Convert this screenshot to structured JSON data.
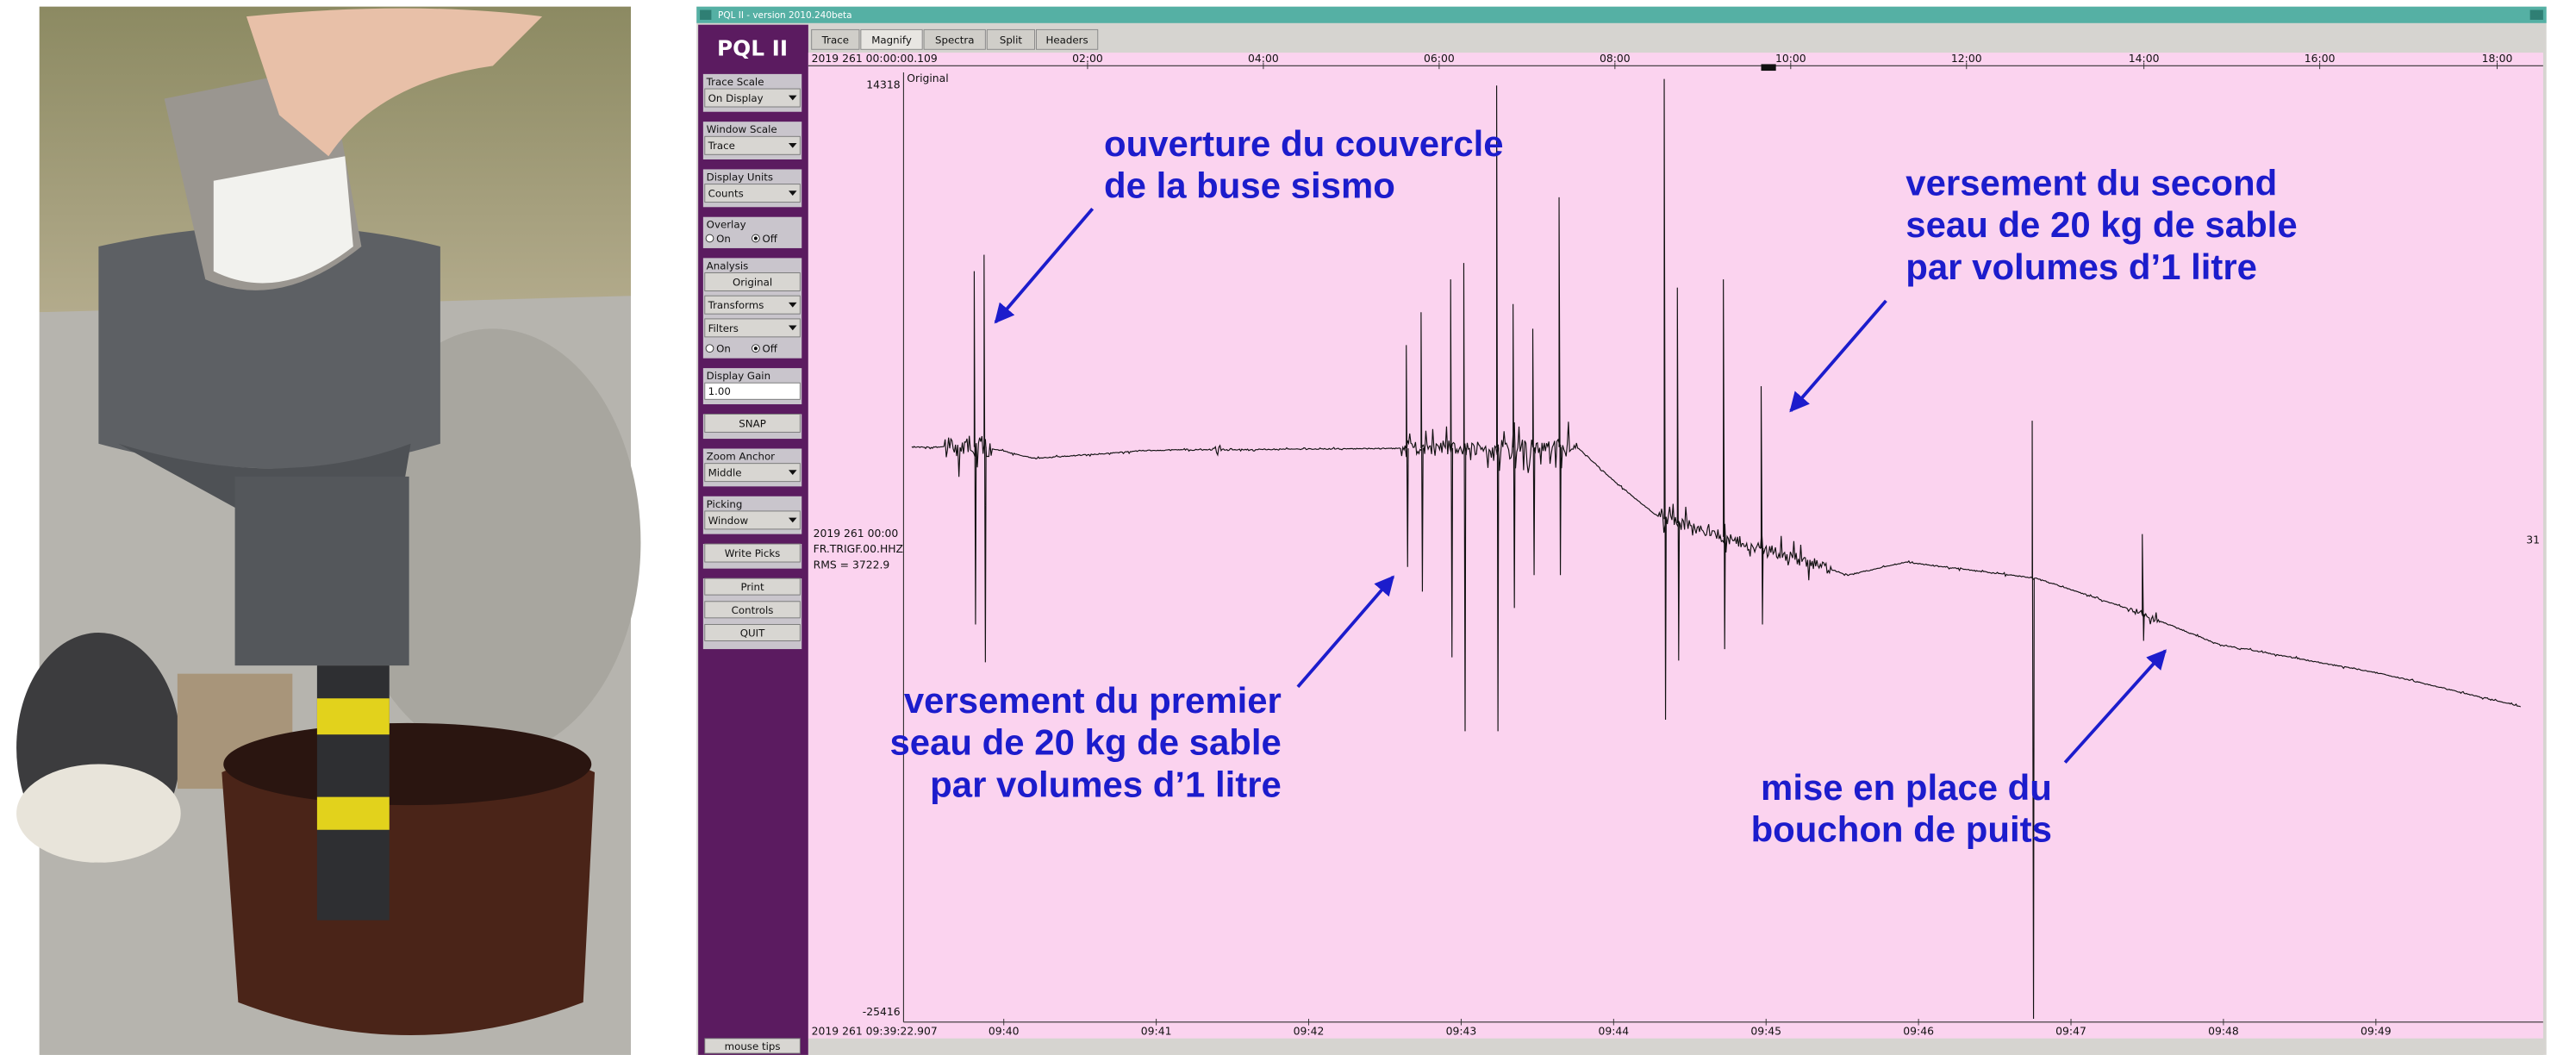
{
  "window": {
    "title": "PQL II - version 2010.240beta"
  },
  "tabs": [
    "Trace",
    "Magnify",
    "Spectra",
    "Split",
    "Headers"
  ],
  "sidebar": {
    "logo": "PQL II",
    "controls": [
      {
        "label": "Trace Scale",
        "dropdown": "On Display"
      },
      {
        "label": "Window Scale",
        "dropdown": "Trace"
      },
      {
        "label": "Display Units",
        "dropdown": "Counts"
      },
      {
        "label": "Overlay",
        "radio": [
          "On",
          "Off"
        ]
      },
      {
        "label": "Analysis",
        "button": "Original",
        "dropdowns": [
          "Transforms",
          "Filters"
        ],
        "radio": [
          "On",
          "Off"
        ]
      },
      {
        "label": "Display Gain",
        "input": "1.00"
      },
      {
        "button": "SNAP"
      },
      {
        "label": "Zoom Anchor",
        "dropdown": "Middle"
      },
      {
        "label": "Picking",
        "dropdown": "Window"
      },
      {
        "button": "Write Picks"
      },
      {
        "buttons": [
          "Print",
          "Controls",
          "QUIT"
        ]
      }
    ],
    "footer": "mouse tips"
  },
  "overview_axis": {
    "start": "2019 261 00:00:00.109",
    "ticks": [
      "02:00",
      "04:00",
      "06:00",
      "08:00",
      "10:00",
      "12:00",
      "14:00",
      "16:00",
      "18:00"
    ]
  },
  "trace": {
    "name": "Original",
    "max": "14318",
    "min": "-25416",
    "info": [
      "2019 261 00:00",
      "FR.TRIGF.00.HHZ",
      "RMS = 3722.9"
    ],
    "right_label": "31"
  },
  "time_axis": {
    "start": "2019 261 09:39:22.907",
    "ticks": [
      "09:40",
      "09:41",
      "09:42",
      "09:43",
      "09:44",
      "09:45",
      "09:46",
      "09:47",
      "09:48",
      "09:49"
    ]
  },
  "annotations": [
    {
      "lines": [
        "ouverture du couvercle",
        "de la buse sismo"
      ]
    },
    {
      "lines": [
        "versement du second",
        "seau de 20 kg de sable",
        "par volumes d’1 litre"
      ]
    },
    {
      "lines": [
        "versement du premier",
        "seau de 20 kg de sable",
        "par volumes d’1 litre"
      ]
    },
    {
      "lines": [
        "mise en place du",
        "bouchon de puits"
      ]
    }
  ]
}
